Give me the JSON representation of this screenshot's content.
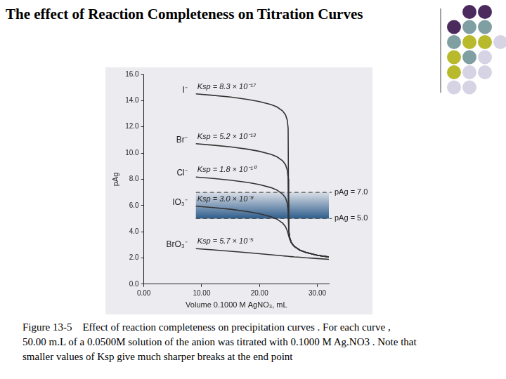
{
  "chart_data": {
    "type": "line",
    "title": "The effect of Reaction Completeness on Titration Curves",
    "x_label": "Volume 0.1000 M AgNO₃, mL",
    "y_label": "pAg",
    "x": [
      9,
      12,
      15,
      18,
      20,
      22,
      23,
      24,
      24.5,
      24.8,
      24.95,
      25,
      25.05,
      25.2,
      25.5,
      26,
      27,
      28,
      30,
      32
    ],
    "series": [
      {
        "name": "I⁻",
        "ksp_label": "Ksp = 8.3 × 10⁻¹⁷",
        "color": "#333333",
        "values": [
          14.51,
          14.4,
          14.27,
          14.09,
          13.93,
          13.7,
          13.52,
          13.21,
          12.91,
          12.51,
          11.9,
          8.04,
          4.18,
          3.58,
          3.18,
          2.88,
          2.59,
          2.42,
          2.2,
          2.07
        ]
      },
      {
        "name": "Br⁻",
        "ksp_label": "Ksp = 5.2 × 10⁻¹³",
        "color": "#333333",
        "values": [
          10.71,
          10.6,
          10.47,
          10.29,
          10.13,
          9.9,
          9.72,
          9.41,
          9.11,
          8.71,
          8.1,
          6.14,
          4.18,
          3.58,
          3.18,
          2.88,
          2.59,
          2.42,
          2.2,
          2.07
        ]
      },
      {
        "name": "Cl⁻",
        "ksp_label": "Ksp = 1.8 × 10⁻¹⁰",
        "color": "#333333",
        "values": [
          8.17,
          8.06,
          7.93,
          7.75,
          7.59,
          7.36,
          7.18,
          6.87,
          6.57,
          6.17,
          5.59,
          4.87,
          4.16,
          3.58,
          3.18,
          2.88,
          2.59,
          2.42,
          2.2,
          2.07
        ]
      },
      {
        "name": "IO₃⁻",
        "ksp_label": "Ksp = 3.0 × 10⁻⁸",
        "color": "#333333",
        "values": [
          5.95,
          5.84,
          5.71,
          5.53,
          5.37,
          5.14,
          4.96,
          4.65,
          4.38,
          4.07,
          3.84,
          3.76,
          3.68,
          3.45,
          3.15,
          2.87,
          2.58,
          2.41,
          2.2,
          2.07
        ]
      },
      {
        "name": "BrO₃⁻",
        "ksp_label": "Ksp = 5.7 × 10⁻⁵",
        "color": "#333333",
        "values": [
          2.71,
          2.61,
          2.51,
          2.4,
          2.32,
          2.24,
          2.2,
          2.16,
          2.14,
          2.13,
          2.12,
          2.12,
          2.12,
          2.11,
          2.1,
          2.08,
          2.05,
          2.01,
          1.95,
          1.89
        ]
      }
    ],
    "xlim": [
      0,
      32
    ],
    "xticks": [
      {
        "value": 0,
        "label": "0.00"
      },
      {
        "value": 10,
        "label": "10.00"
      },
      {
        "value": 20,
        "label": "20.00"
      },
      {
        "value": 30,
        "label": "30.00"
      }
    ],
    "ylim": [
      0,
      16
    ],
    "yticks": [
      {
        "value": 0,
        "label": "0.0"
      },
      {
        "value": 2,
        "label": "2.0"
      },
      {
        "value": 4,
        "label": "4.0"
      },
      {
        "value": 6,
        "label": "6.0"
      },
      {
        "value": 8,
        "label": "8.0"
      },
      {
        "value": 10,
        "label": "10.0"
      },
      {
        "value": 12,
        "label": "12.0"
      },
      {
        "value": 14,
        "label": "14.0"
      },
      {
        "value": 16,
        "label": "16.0"
      }
    ],
    "grid": false,
    "reference_lines": [
      {
        "value": 7,
        "label": "pAg = 7.0",
        "line_style": "dashed"
      },
      {
        "value": 5,
        "label": "pAg = 5.0",
        "line_style": "dashed"
      }
    ],
    "band": {
      "from": 5,
      "to": 7,
      "x_from": 9,
      "color": "#2e5d8c"
    },
    "caption": [
      "Figure 13-5    Effect of reaction completeness on precipitation curves . For each curve ,",
      "50.00 m.L of a 0.0500M solution of the anion was titrated with 0.1000 M Ag.NO3 . Note that",
      "smaller values of Ksp give much sharper breaks at the end point"
    ]
  }
}
